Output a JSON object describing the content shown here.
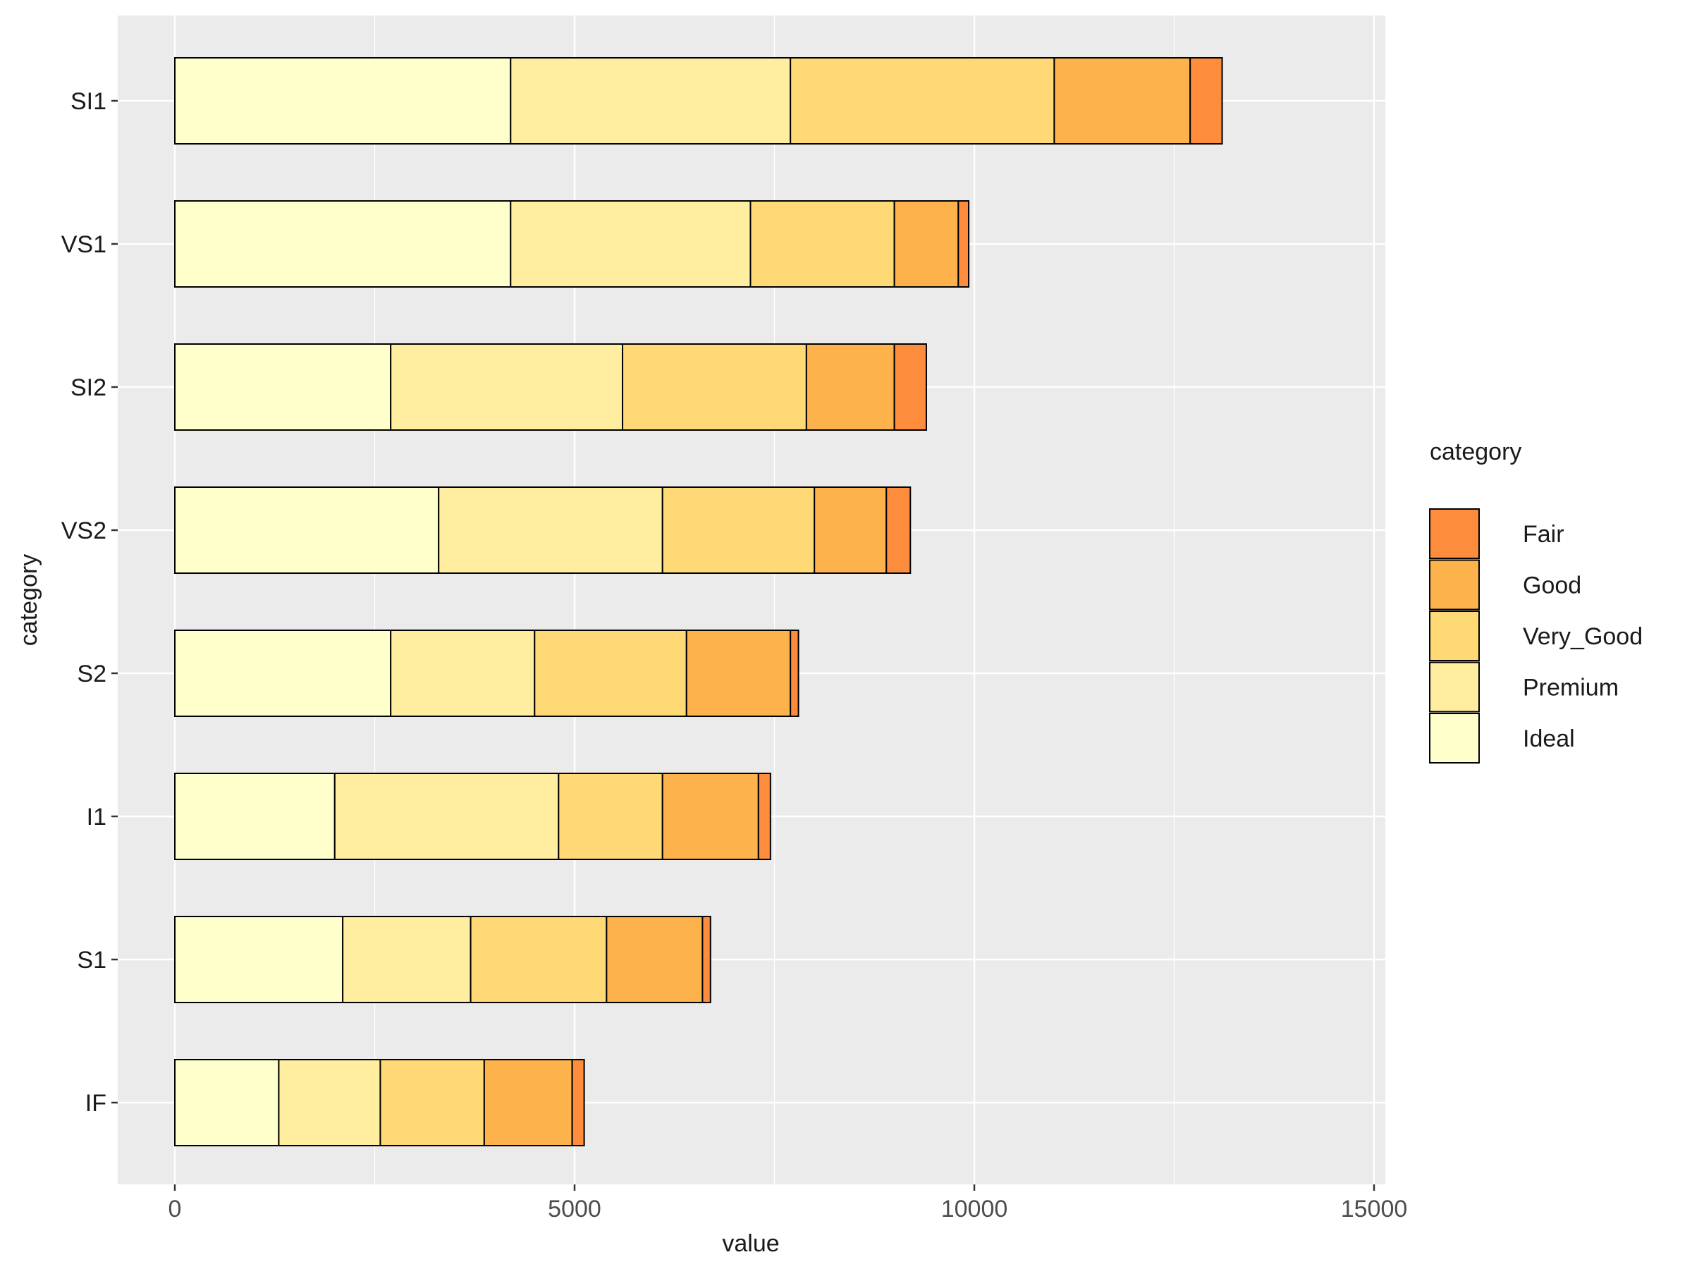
{
  "chart_data": {
    "type": "bar",
    "orientation": "horizontal",
    "stacked": true,
    "xlabel": "value",
    "ylabel": "category",
    "xlim": [
      0,
      15000
    ],
    "x_ticks": [
      0,
      5000,
      10000,
      15000
    ],
    "grid": true,
    "legend_title": "category",
    "legend_position": "right",
    "categories": [
      "SI1",
      "VS1",
      "SI2",
      "VS2",
      "S2",
      "I1",
      "S1",
      "IF"
    ],
    "series": [
      {
        "name": "Ideal",
        "color": "#FFFFCC",
        "values": [
          4200,
          4200,
          2700,
          3300,
          2700,
          2000,
          2100,
          1300
        ]
      },
      {
        "name": "Premium",
        "color": "#FFEDA0",
        "values": [
          3500,
          3000,
          2900,
          2800,
          1800,
          2800,
          1600,
          1270
        ]
      },
      {
        "name": "Very_Good",
        "color": "#FED976",
        "values": [
          3300,
          1800,
          2300,
          1900,
          1900,
          1300,
          1700,
          1300
        ]
      },
      {
        "name": "Good",
        "color": "#FEB24C",
        "values": [
          1700,
          800,
          1100,
          900,
          1300,
          1200,
          1200,
          1100
        ]
      },
      {
        "name": "Fair",
        "color": "#FD8D3C",
        "values": [
          400,
          130,
          400,
          300,
          100,
          150,
          100,
          150
        ]
      }
    ],
    "legend_order": [
      "Fair",
      "Good",
      "Very_Good",
      "Premium",
      "Ideal"
    ]
  }
}
